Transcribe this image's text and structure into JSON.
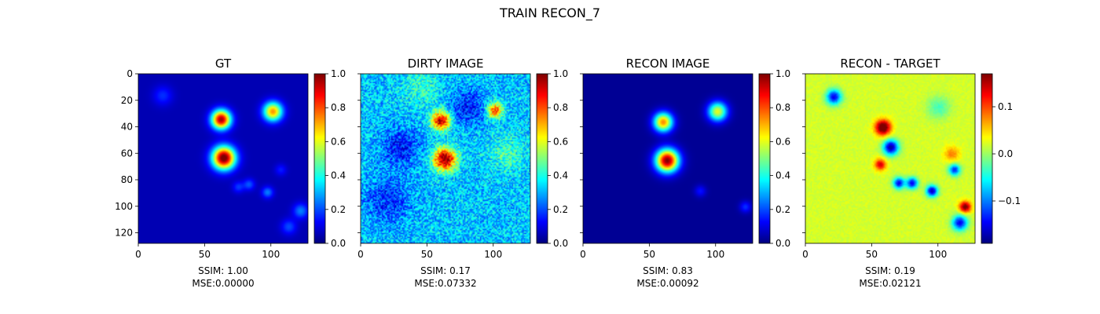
{
  "figure": {
    "suptitle": "TRAIN RECON_7"
  },
  "chart_data": [
    {
      "type": "heatmap",
      "title": "GT",
      "xlabel": [
        "SSIM: 1.00",
        "MSE:0.00000"
      ],
      "x_ticks": [
        0,
        50,
        100
      ],
      "y_ticks": [
        0,
        20,
        40,
        60,
        80,
        100,
        120
      ],
      "y_tick_labels_shown": true,
      "xlim": [
        0,
        128
      ],
      "ylim": [
        128,
        0
      ],
      "colormap": "jet",
      "colorbar": {
        "min": 0.0,
        "max": 1.0,
        "ticks": [
          0.0,
          0.2,
          0.4,
          0.6,
          0.8,
          1.0
        ],
        "tick_labels": [
          "0.0",
          "0.2",
          "0.4",
          "0.6",
          "0.8",
          "1.0"
        ]
      },
      "background": 0.05,
      "noise": 0.0,
      "blobs": [
        {
          "x": 62,
          "y": 34,
          "sigma": 5,
          "amp": 0.92
        },
        {
          "x": 101,
          "y": 28,
          "sigma": 5,
          "amp": 0.68
        },
        {
          "x": 64,
          "y": 63,
          "sigma": 6,
          "amp": 1.0
        },
        {
          "x": 18,
          "y": 16,
          "sigma": 5,
          "amp": 0.12
        },
        {
          "x": 75,
          "y": 85,
          "sigma": 3,
          "amp": 0.13
        },
        {
          "x": 83,
          "y": 83,
          "sigma": 3,
          "amp": 0.16
        },
        {
          "x": 97,
          "y": 89,
          "sigma": 3,
          "amp": 0.2
        },
        {
          "x": 122,
          "y": 103,
          "sigma": 4,
          "amp": 0.2
        },
        {
          "x": 113,
          "y": 115,
          "sigma": 4,
          "amp": 0.15
        },
        {
          "x": 107,
          "y": 72,
          "sigma": 3,
          "amp": 0.1
        }
      ]
    },
    {
      "type": "heatmap",
      "title": "DIRTY IMAGE",
      "xlabel": [
        "SSIM: 0.17",
        "MSE:0.07332"
      ],
      "x_ticks": [
        0,
        50,
        100
      ],
      "y_ticks": [
        0,
        20,
        40,
        60,
        80,
        100,
        120
      ],
      "y_tick_labels_shown": false,
      "xlim": [
        0,
        128
      ],
      "ylim": [
        128,
        0
      ],
      "colormap": "jet",
      "colorbar": {
        "min": 0.0,
        "max": 1.0,
        "ticks": [
          0.0,
          0.2,
          0.4,
          0.6,
          0.8,
          1.0
        ],
        "tick_labels": [
          "0.0",
          "0.2",
          "0.4",
          "0.6",
          "0.8",
          "1.0"
        ]
      },
      "background": 0.32,
      "noise": 0.12,
      "blobs": [
        {
          "x": 60,
          "y": 35,
          "sigma": 5,
          "amp": 0.62
        },
        {
          "x": 101,
          "y": 27,
          "sigma": 4,
          "amp": 0.5
        },
        {
          "x": 63,
          "y": 64,
          "sigma": 6,
          "amp": 0.68
        },
        {
          "x": 30,
          "y": 55,
          "sigma": 10,
          "amp": -0.18
        },
        {
          "x": 80,
          "y": 25,
          "sigma": 9,
          "amp": -0.18
        },
        {
          "x": 20,
          "y": 95,
          "sigma": 12,
          "amp": -0.15
        },
        {
          "x": 110,
          "y": 60,
          "sigma": 10,
          "amp": 0.12
        },
        {
          "x": 45,
          "y": 10,
          "sigma": 10,
          "amp": 0.1
        }
      ]
    },
    {
      "type": "heatmap",
      "title": "RECON IMAGE",
      "xlabel": [
        "SSIM: 0.83",
        "MSE:0.00092"
      ],
      "x_ticks": [
        0,
        50,
        100
      ],
      "y_ticks": [
        0,
        20,
        40,
        60,
        80,
        100,
        120
      ],
      "y_tick_labels_shown": false,
      "xlim": [
        0,
        128
      ],
      "ylim": [
        128,
        0
      ],
      "colormap": "jet",
      "colorbar": {
        "min": 0.0,
        "max": 1.0,
        "ticks": [
          0.0,
          0.2,
          0.4,
          0.6,
          0.8,
          1.0
        ],
        "tick_labels": [
          "0.0",
          "0.2",
          "0.4",
          "0.6",
          "0.8",
          "1.0"
        ]
      },
      "background": 0.02,
      "noise": 0.0,
      "blobs": [
        {
          "x": 60,
          "y": 36,
          "sigma": 5,
          "amp": 0.72
        },
        {
          "x": 101,
          "y": 28,
          "sigma": 5,
          "amp": 0.58
        },
        {
          "x": 63,
          "y": 65,
          "sigma": 6,
          "amp": 0.98
        },
        {
          "x": 88,
          "y": 88,
          "sigma": 3,
          "amp": 0.12
        },
        {
          "x": 122,
          "y": 100,
          "sigma": 3,
          "amp": 0.15
        }
      ]
    },
    {
      "type": "heatmap",
      "title": "RECON - TARGET",
      "xlabel": [
        "SSIM: 0.19",
        "MSE:0.02121"
      ],
      "x_ticks": [
        0,
        50,
        100
      ],
      "y_ticks": [
        0,
        20,
        40,
        60,
        80,
        100,
        120
      ],
      "y_tick_labels_shown": false,
      "xlim": [
        0,
        128
      ],
      "ylim": [
        128,
        0
      ],
      "colormap": "jet",
      "colorbar": {
        "min": -0.19,
        "max": 0.17,
        "ticks": [
          -0.1,
          0.0,
          0.1
        ],
        "tick_labels": [
          "−0.1",
          "0.0",
          "0.1"
        ]
      },
      "background": 0.02,
      "noise": 0.008,
      "blobs": [
        {
          "x": 58,
          "y": 40,
          "sigma": 4,
          "amp": 0.19
        },
        {
          "x": 64,
          "y": 55,
          "sigma": 4,
          "amp": -0.2
        },
        {
          "x": 56,
          "y": 68,
          "sigma": 3,
          "amp": 0.12
        },
        {
          "x": 21,
          "y": 17,
          "sigma": 4,
          "amp": -0.17
        },
        {
          "x": 70,
          "y": 82,
          "sigma": 3,
          "amp": -0.17
        },
        {
          "x": 80,
          "y": 82,
          "sigma": 3,
          "amp": -0.17
        },
        {
          "x": 95,
          "y": 88,
          "sigma": 3,
          "amp": -0.19
        },
        {
          "x": 112,
          "y": 72,
          "sigma": 3,
          "amp": -0.15
        },
        {
          "x": 120,
          "y": 100,
          "sigma": 3,
          "amp": 0.16
        },
        {
          "x": 116,
          "y": 112,
          "sigma": 4,
          "amp": -0.17
        },
        {
          "x": 110,
          "y": 60,
          "sigma": 4,
          "amp": 0.06
        },
        {
          "x": 100,
          "y": 25,
          "sigma": 6,
          "amp": -0.05
        }
      ]
    }
  ]
}
